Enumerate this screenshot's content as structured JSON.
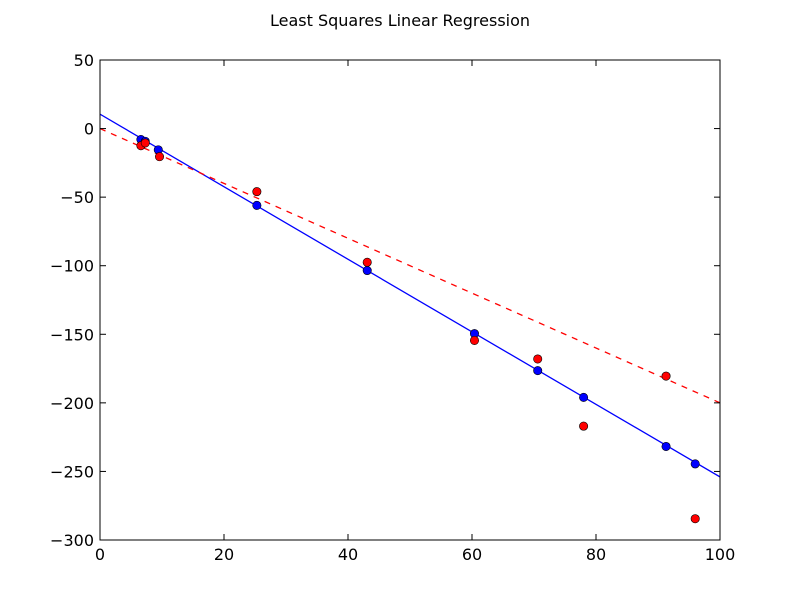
{
  "chart_data": {
    "type": "scatter",
    "title": "Least Squares Linear Regression",
    "xlabel": "",
    "ylabel": "",
    "xlim": [
      0,
      100
    ],
    "ylim": [
      -300,
      50
    ],
    "x_ticks": [
      0,
      20,
      40,
      60,
      80,
      100
    ],
    "y_ticks": [
      50,
      0,
      -50,
      -100,
      -150,
      -200,
      -250,
      -300
    ],
    "x_tick_labels": [
      "0",
      "20",
      "40",
      "60",
      "80",
      "100"
    ],
    "y_tick_labels": [
      "50",
      "0",
      "−50",
      "−100",
      "−150",
      "−200",
      "−250",
      "−300"
    ],
    "grid": false,
    "legend": "none",
    "colors": {
      "fit": "#0000ff",
      "observed": "#ff0000",
      "true_line": "#ff0000"
    },
    "series": [
      {
        "kind": "points",
        "color": "#0000ff",
        "points": [
          [
            6.6,
            -8.0
          ],
          [
            7.3,
            -9.3
          ],
          [
            9.4,
            -15.5
          ],
          [
            25.3,
            -56.0
          ],
          [
            43.1,
            -103.5
          ],
          [
            60.4,
            -149.5
          ],
          [
            70.6,
            -176.5
          ],
          [
            78.0,
            -196.0
          ],
          [
            91.3,
            -231.8
          ],
          [
            96.0,
            -244.5
          ]
        ]
      },
      {
        "kind": "points",
        "color": "#ff0000",
        "points": [
          [
            6.6,
            -12.5
          ],
          [
            7.3,
            -10.5
          ],
          [
            9.6,
            -20.5
          ],
          [
            25.3,
            -46.0
          ],
          [
            43.1,
            -97.5
          ],
          [
            60.4,
            -154.5
          ],
          [
            70.6,
            -168.0
          ],
          [
            78.0,
            -217.0
          ],
          [
            91.3,
            -180.5
          ],
          [
            96.0,
            -284.5
          ]
        ]
      },
      {
        "kind": "line",
        "style": "solid",
        "color": "#0000ff",
        "points": [
          [
            0,
            10.5
          ],
          [
            100,
            -254
          ]
        ]
      },
      {
        "kind": "line",
        "style": "dashed",
        "color": "#ff0000",
        "points": [
          [
            0,
            0
          ],
          [
            100,
            -200
          ]
        ]
      }
    ]
  }
}
